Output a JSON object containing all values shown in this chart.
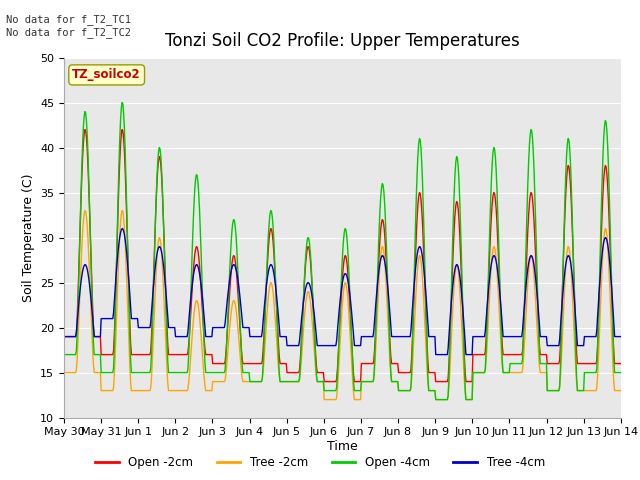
{
  "title": "Tonzi Soil CO2 Profile: Upper Temperatures",
  "ylabel": "Soil Temperature (C)",
  "xlabel": "Time",
  "ylim": [
    10,
    50
  ],
  "yticks": [
    10,
    15,
    20,
    25,
    30,
    35,
    40,
    45,
    50
  ],
  "annotation_text": "No data for f_T2_TC1\nNo data for f_T2_TC2",
  "legend_label_text": "TZ_soilco2",
  "legend_entries": [
    "Open -2cm",
    "Tree -2cm",
    "Open -4cm",
    "Tree -4cm"
  ],
  "legend_colors": [
    "#ff0000",
    "#ffa500",
    "#00cc00",
    "#0000cd"
  ],
  "background_color": "#e8e8e8",
  "fig_bg_color": "#ffffff",
  "xtick_labels": [
    "May 30",
    "May 31",
    "Jun 1",
    "Jun 2",
    "Jun 3",
    "Jun 4",
    "Jun 5",
    "Jun 6",
    "Jun 7",
    "Jun 8",
    "Jun 9",
    "Jun 10",
    "Jun 11",
    "Jun 12",
    "Jun 13",
    "Jun 14"
  ],
  "line_colors": [
    "#ff0000",
    "#ffa500",
    "#00cc00",
    "#0000cd"
  ],
  "line_width": 1.0,
  "title_fontsize": 12,
  "axis_fontsize": 9,
  "tick_fontsize": 8,
  "n_days": 15,
  "pts_per_day": 48,
  "day_amplitudes_open2": [
    23,
    25,
    22,
    12,
    12,
    15,
    14,
    14,
    16,
    20,
    20,
    18,
    18,
    22,
    22,
    22
  ],
  "day_amplitudes_tree2": [
    18,
    20,
    17,
    10,
    9,
    11,
    10,
    13,
    15,
    15,
    15,
    14,
    13,
    16,
    18,
    18
  ],
  "day_amplitudes_open4": [
    27,
    30,
    25,
    22,
    17,
    19,
    16,
    18,
    22,
    28,
    27,
    25,
    26,
    28,
    28,
    24
  ],
  "day_amplitudes_tree4": [
    8,
    10,
    9,
    8,
    7,
    8,
    7,
    8,
    9,
    10,
    10,
    9,
    9,
    10,
    11,
    9
  ],
  "base_open2": [
    19,
    17,
    17,
    17,
    16,
    16,
    15,
    14,
    16,
    15,
    14,
    17,
    17,
    16,
    16,
    20
  ],
  "base_tree2": [
    15,
    13,
    13,
    13,
    14,
    14,
    14,
    12,
    14,
    13,
    12,
    15,
    15,
    13,
    13,
    17
  ],
  "base_open4": [
    17,
    15,
    15,
    15,
    15,
    14,
    14,
    13,
    14,
    13,
    12,
    15,
    16,
    13,
    15,
    19
  ],
  "base_tree4": [
    19,
    21,
    20,
    19,
    20,
    19,
    18,
    18,
    19,
    19,
    17,
    19,
    19,
    18,
    19,
    21
  ],
  "phase_shift": 0.33
}
